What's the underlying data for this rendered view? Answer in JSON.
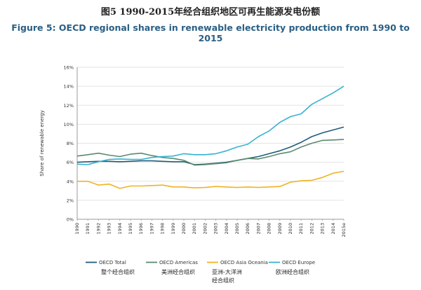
{
  "title_cn": "图5    1990-2015年经合组织地区可再生能源发电份额",
  "title_en": "Figure 5: OECD regional shares in renewable electricity production from 1990 to 2015",
  "chart_data": {
    "type": "line",
    "ylabel": "Share of renewable energy",
    "xlabel": "",
    "ylim": [
      0,
      16
    ],
    "yticks": [
      "0%",
      "2%",
      "4%",
      "6%",
      "8%",
      "10%",
      "12%",
      "14%",
      "16%"
    ],
    "grid": true,
    "legend_position": "bottom",
    "x": [
      "1990",
      "1991",
      "1992",
      "1993",
      "1994",
      "1995",
      "1996",
      "1997",
      "1998",
      "1999",
      "2000",
      "2001",
      "2002",
      "2003",
      "2004",
      "2005",
      "2006",
      "2007",
      "2008",
      "2009",
      "2010",
      "2011",
      "2012",
      "2013",
      "2014",
      "2015e"
    ],
    "series": [
      {
        "name": "OECD Total",
        "name_cn": "整个经合组织",
        "color": "#1f5d7a",
        "values": [
          6.0,
          6.05,
          6.1,
          6.1,
          6.05,
          6.1,
          6.15,
          6.15,
          6.1,
          6.05,
          6.05,
          5.75,
          5.8,
          5.9,
          6.0,
          6.2,
          6.4,
          6.6,
          6.9,
          7.2,
          7.6,
          8.1,
          8.7,
          9.1,
          9.4,
          9.7
        ]
      },
      {
        "name": "OECD Americas",
        "name_cn": "美洲经合组织",
        "color": "#5b8a6e",
        "values": [
          6.65,
          6.8,
          6.95,
          6.75,
          6.6,
          6.85,
          6.95,
          6.7,
          6.5,
          6.4,
          6.2,
          5.7,
          5.75,
          5.85,
          5.95,
          6.2,
          6.4,
          6.35,
          6.6,
          6.9,
          7.1,
          7.6,
          8.0,
          8.3,
          8.35,
          8.4
        ]
      },
      {
        "name": "OECD Asia Oceania",
        "name_cn": "亚洲-大洋洲经合组织",
        "color": "#f0b323",
        "values": [
          4.0,
          4.0,
          3.6,
          3.7,
          3.25,
          3.5,
          3.5,
          3.55,
          3.6,
          3.4,
          3.4,
          3.3,
          3.35,
          3.45,
          3.4,
          3.35,
          3.4,
          3.35,
          3.4,
          3.45,
          3.9,
          4.05,
          4.1,
          4.4,
          4.85,
          5.05
        ]
      },
      {
        "name": "OECD Europe",
        "name_cn": "欧洲经合组织",
        "color": "#37b2d1",
        "values": [
          5.8,
          5.75,
          6.05,
          6.3,
          6.35,
          6.3,
          6.3,
          6.5,
          6.6,
          6.65,
          6.9,
          6.8,
          6.8,
          6.9,
          7.2,
          7.6,
          7.9,
          8.7,
          9.3,
          10.2,
          10.8,
          11.1,
          12.1,
          12.7,
          13.3,
          14.0
        ]
      }
    ]
  }
}
